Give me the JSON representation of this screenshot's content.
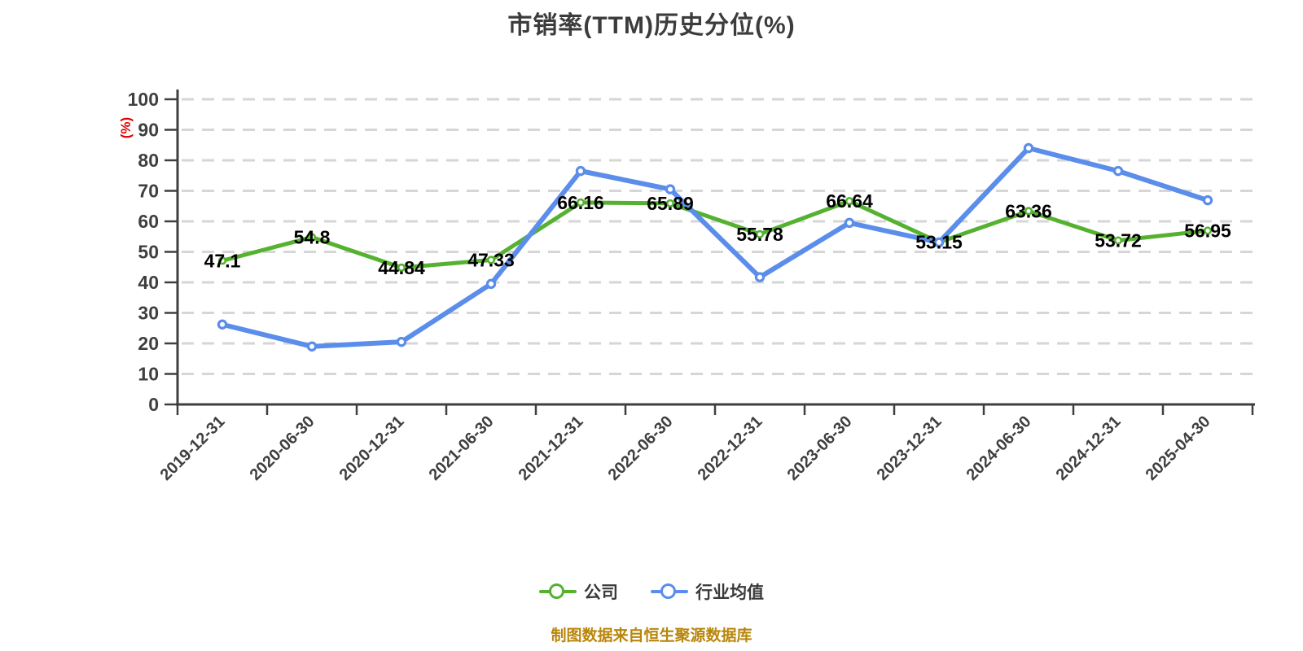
{
  "title": {
    "text": "市销率(TTM)历史分位(%)",
    "color": "#3c3c3c"
  },
  "y_axis_unit": {
    "text": "(%)",
    "color": "#e00000"
  },
  "footer": {
    "text": "制图数据来自恒生聚源数据库",
    "color": "#b8860b"
  },
  "chart_data": {
    "type": "line",
    "title": "市销率(TTM)历史分位(%)",
    "xlabel": "",
    "ylabel": "(%)",
    "ylim": [
      0,
      100
    ],
    "y_tick_step": 10,
    "grid": "horizontal dashed gridlines",
    "grid_color": "#d6d6d6",
    "axis_color": "#3f3f3f",
    "legend_position": "bottom",
    "categories": [
      "2019-12-31",
      "2020-06-30",
      "2020-12-31",
      "2021-06-30",
      "2021-12-31",
      "2022-06-30",
      "2022-12-31",
      "2023-06-30",
      "2023-12-31",
      "2024-06-30",
      "2024-12-31",
      "2025-04-30"
    ],
    "series": [
      {
        "name": "公司",
        "color": "#55b230",
        "show_labels": true,
        "values": [
          47.1,
          54.8,
          44.84,
          47.33,
          66.16,
          65.89,
          55.78,
          66.64,
          53.15,
          63.36,
          53.72,
          56.95
        ]
      },
      {
        "name": "行业均值",
        "color": "#5b8deb",
        "show_labels": false,
        "values": [
          26.2,
          19.0,
          20.5,
          39.5,
          76.5,
          70.5,
          41.7,
          59.5,
          53.1,
          84.0,
          76.5,
          66.9
        ]
      }
    ]
  }
}
